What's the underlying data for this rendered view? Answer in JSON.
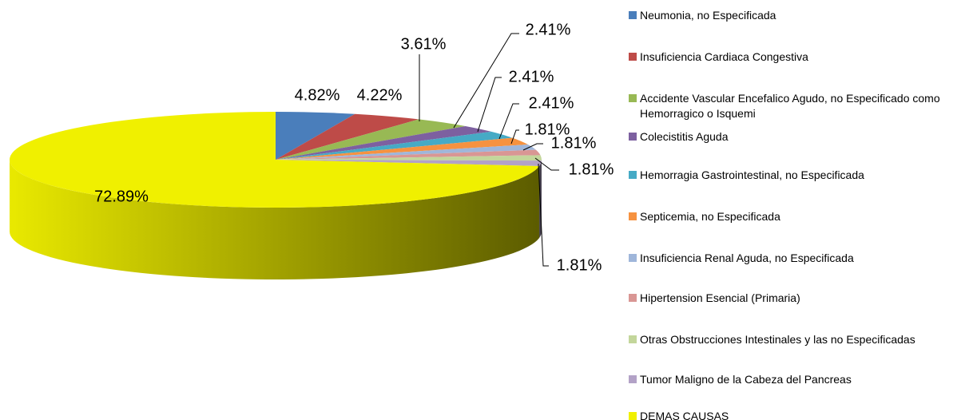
{
  "chart_data": {
    "type": "pie3d",
    "categories": [
      "Neumonia, no Especificada",
      "Insuficiencia Cardiaca Congestiva",
      "Accidente Vascular Encefalico Agudo, no Especificado como Hemorragico o  Isquemi",
      "Colecistitis Aguda",
      "Hemorragia Gastrointestinal, no Especificada",
      "Septicemia, no Especificada",
      "Insuficiencia Renal Aguda, no Especificada",
      "Hipertension Esencial (Primaria)",
      "Otras Obstrucciones Intestinales y las no Especificadas",
      "Tumor Maligno de la Cabeza del Pancreas",
      "DEMAS CAUSAS"
    ],
    "values": [
      4.82,
      4.22,
      3.61,
      2.41,
      2.41,
      2.41,
      1.81,
      1.81,
      1.81,
      1.81,
      72.89
    ],
    "value_labels": [
      "4.82%",
      "4.22%",
      "3.61%",
      "2.41%",
      "2.41%",
      "2.41%",
      "1.81%",
      "1.81%",
      "1.81%",
      "1.81%",
      "72.89%"
    ],
    "colors": [
      "#4a7ebb",
      "#be4b48",
      "#98b954",
      "#7d60a0",
      "#46aac5",
      "#f69240",
      "#9fb6da",
      "#d99694",
      "#c3d69b",
      "#b3a2c7",
      "#f0f000"
    ],
    "legend": "right"
  }
}
